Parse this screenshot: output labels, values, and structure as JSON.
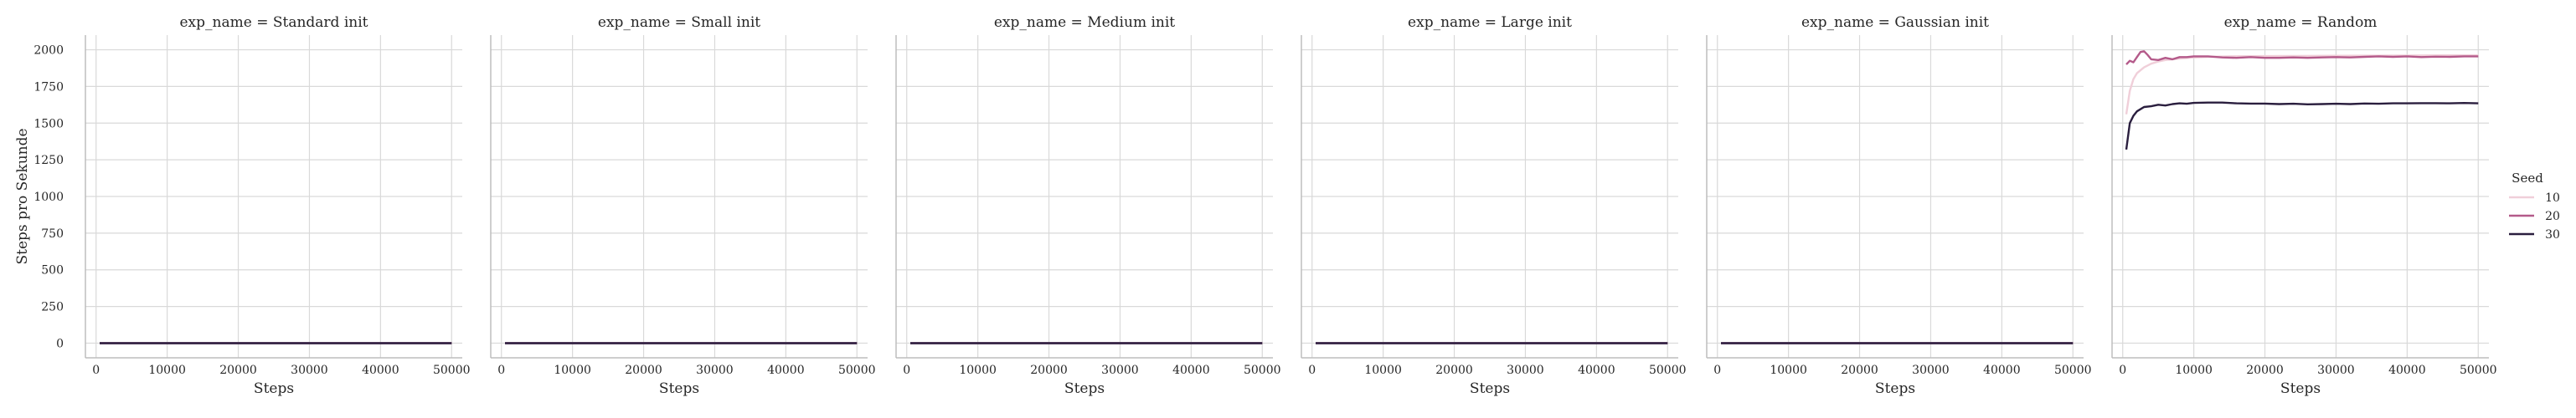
{
  "chart_data": {
    "type": "line",
    "layout": "facet-grid, 1 row x 6 columns, shared y axis",
    "ylabel": "Steps pro Sekunde",
    "xlabel": "Steps",
    "xlim": [
      -1500,
      51500
    ],
    "ylim": [
      -100,
      2100
    ],
    "xticks": [
      0,
      10000,
      20000,
      30000,
      40000,
      50000
    ],
    "yticks": [
      0,
      250,
      500,
      750,
      1000,
      1250,
      1500,
      1750,
      2000
    ],
    "grid": true,
    "legend": {
      "title": "Seed",
      "placement": "right",
      "entries": [
        {
          "label": "10",
          "color": "#f0cfd9"
        },
        {
          "label": "20",
          "color": "#b45a8a"
        },
        {
          "label": "30",
          "color": "#2a1e3e"
        }
      ]
    },
    "panels": [
      {
        "title": "exp_name = Standard init",
        "series": [
          {
            "name": "10",
            "x": [
              500,
              50000
            ],
            "y": [
              0,
              0
            ]
          },
          {
            "name": "20",
            "x": [
              500,
              50000
            ],
            "y": [
              0,
              0
            ]
          },
          {
            "name": "30",
            "x": [
              500,
              50000
            ],
            "y": [
              0,
              0
            ]
          }
        ]
      },
      {
        "title": "exp_name = Small init",
        "series": [
          {
            "name": "10",
            "x": [
              500,
              50000
            ],
            "y": [
              0,
              0
            ]
          },
          {
            "name": "20",
            "x": [
              500,
              50000
            ],
            "y": [
              0,
              0
            ]
          },
          {
            "name": "30",
            "x": [
              500,
              50000
            ],
            "y": [
              0,
              0
            ]
          }
        ]
      },
      {
        "title": "exp_name = Medium init",
        "series": [
          {
            "name": "10",
            "x": [
              500,
              50000
            ],
            "y": [
              0,
              0
            ]
          },
          {
            "name": "20",
            "x": [
              500,
              50000
            ],
            "y": [
              0,
              0
            ]
          },
          {
            "name": "30",
            "x": [
              500,
              50000
            ],
            "y": [
              0,
              0
            ]
          }
        ]
      },
      {
        "title": "exp_name = Large init",
        "series": [
          {
            "name": "10",
            "x": [
              500,
              50000
            ],
            "y": [
              0,
              0
            ]
          },
          {
            "name": "20",
            "x": [
              500,
              50000
            ],
            "y": [
              0,
              0
            ]
          },
          {
            "name": "30",
            "x": [
              500,
              50000
            ],
            "y": [
              0,
              0
            ]
          }
        ]
      },
      {
        "title": "exp_name = Gaussian init",
        "series": [
          {
            "name": "10",
            "x": [
              500,
              50000
            ],
            "y": [
              0,
              0
            ]
          },
          {
            "name": "20",
            "x": [
              500,
              50000
            ],
            "y": [
              0,
              0
            ]
          },
          {
            "name": "30",
            "x": [
              500,
              50000
            ],
            "y": [
              0,
              0
            ]
          }
        ]
      },
      {
        "title": "exp_name = Random",
        "series": [
          {
            "name": "10",
            "x": [
              500,
              1000,
              1500,
              2000,
              3000,
              4000,
              5000,
              6000,
              8000,
              10000,
              12000,
              15000,
              20000,
              25000,
              30000,
              35000,
              40000,
              45000,
              50000
            ],
            "y": [
              1560,
              1720,
              1800,
              1840,
              1880,
              1905,
              1920,
              1930,
              1940,
              1948,
              1952,
              1955,
              1957,
              1958,
              1959,
              1960,
              1961,
              1962,
              1962
            ]
          },
          {
            "name": "20",
            "x": [
              500,
              1000,
              1500,
              2000,
              2500,
              3000,
              3500,
              4000,
              5000,
              6000,
              7000,
              8000,
              9000,
              10000,
              12000,
              14000,
              16000,
              18000,
              20000,
              22000,
              24000,
              26000,
              28000,
              30000,
              32000,
              34000,
              36000,
              38000,
              40000,
              42000,
              44000,
              46000,
              48000,
              50000
            ],
            "y": [
              1900,
              1925,
              1915,
              1950,
              1985,
              1990,
              1965,
              1935,
              1930,
              1945,
              1935,
              1950,
              1950,
              1955,
              1955,
              1948,
              1945,
              1950,
              1945,
              1945,
              1948,
              1945,
              1948,
              1950,
              1948,
              1952,
              1955,
              1952,
              1955,
              1950,
              1953,
              1952,
              1955,
              1955
            ]
          },
          {
            "name": "30",
            "x": [
              500,
              1000,
              1500,
              2000,
              3000,
              4000,
              5000,
              6000,
              7000,
              8000,
              9000,
              10000,
              12000,
              14000,
              16000,
              18000,
              20000,
              22000,
              24000,
              26000,
              28000,
              30000,
              32000,
              34000,
              36000,
              38000,
              40000,
              42000,
              44000,
              46000,
              48000,
              50000
            ],
            "y": [
              1320,
              1500,
              1550,
              1580,
              1610,
              1615,
              1625,
              1620,
              1630,
              1635,
              1632,
              1638,
              1640,
              1640,
              1635,
              1633,
              1633,
              1630,
              1632,
              1628,
              1630,
              1632,
              1630,
              1634,
              1632,
              1635,
              1635,
              1636,
              1636,
              1635,
              1637,
              1635
            ]
          }
        ]
      }
    ]
  }
}
